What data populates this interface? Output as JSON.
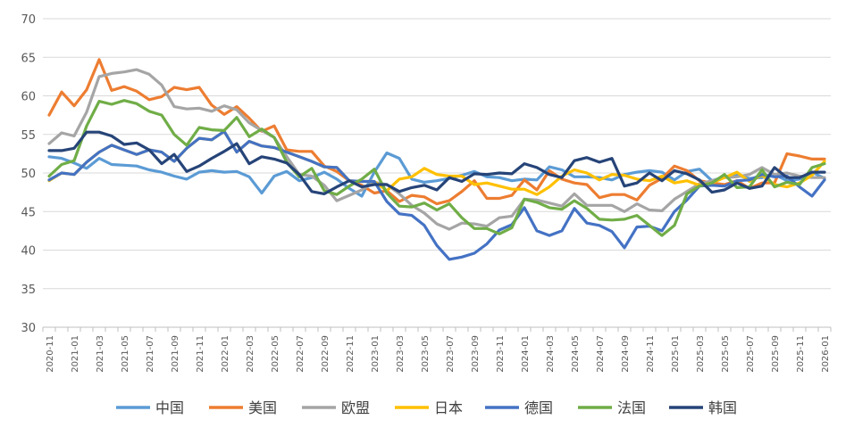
{
  "chart_data": {
    "type": "line",
    "title": "",
    "xlabel": "",
    "ylabel": "",
    "ylim": [
      30,
      70
    ],
    "yticks": [
      30,
      35,
      40,
      45,
      50,
      55,
      60,
      65,
      70
    ],
    "grid": "horizontal",
    "legend": "bottom",
    "x_tick_labels": [
      "2020-11",
      "2021-01",
      "2021-03",
      "2021-05",
      "2021-07",
      "2021-09",
      "2021-11",
      "2022-01",
      "2022-03",
      "2022-05",
      "2022-07",
      "2022-09",
      "2022-11",
      "2023-01",
      "2023-03",
      "2023-05",
      "2023-07",
      "2023-09",
      "2023-11",
      "2024-01",
      "2024-03",
      "2024-05",
      "2024-07",
      "2024-09",
      "2024-11",
      "2025-01",
      "2025-03",
      "2025-05",
      "2025-07",
      "2025-09",
      "2025-11",
      "2026-01"
    ],
    "x": [
      "2020-11",
      "2020-12",
      "2021-01",
      "2021-02",
      "2021-03",
      "2021-04",
      "2021-05",
      "2021-06",
      "2021-07",
      "2021-08",
      "2021-09",
      "2021-10",
      "2021-11",
      "2021-12",
      "2022-01",
      "2022-02",
      "2022-03",
      "2022-04",
      "2022-05",
      "2022-06",
      "2022-07",
      "2022-08",
      "2022-09",
      "2022-10",
      "2022-11",
      "2022-12",
      "2023-01",
      "2023-02",
      "2023-03",
      "2023-04",
      "2023-05",
      "2023-06",
      "2023-07",
      "2023-08",
      "2023-09",
      "2023-10",
      "2023-11",
      "2023-12",
      "2024-01",
      "2024-02",
      "2024-03",
      "2024-04",
      "2024-05",
      "2024-06",
      "2024-07",
      "2024-08",
      "2024-09",
      "2024-10",
      "2024-11",
      "2024-12",
      "2025-01",
      "2025-02",
      "2025-03",
      "2025-04",
      "2025-05",
      "2025-06",
      "2025-07",
      "2025-08",
      "2025-09",
      "2025-10",
      "2025-11",
      "2025-12",
      "2026-01"
    ],
    "series": [
      {
        "name": "中国",
        "color": "#5B9BD5",
        "values": [
          52.1,
          51.9,
          51.3,
          50.6,
          51.9,
          51.1,
          51.0,
          50.9,
          50.4,
          50.1,
          49.6,
          49.2,
          50.1,
          50.3,
          50.1,
          50.2,
          49.5,
          47.4,
          49.6,
          50.2,
          49.0,
          49.4,
          50.1,
          49.2,
          48.0,
          47.0,
          50.1,
          52.6,
          51.9,
          49.2,
          48.8,
          49.0,
          49.3,
          49.7,
          50.2,
          49.5,
          49.4,
          49.0,
          49.2,
          49.1,
          50.8,
          50.4,
          49.5,
          49.5,
          49.4,
          49.1,
          49.8,
          50.1,
          50.3,
          50.1,
          49.1,
          50.2,
          50.5,
          49.0,
          49.5,
          49.7,
          49.3,
          49.4,
          49.8,
          49.0,
          49.2,
          50.1,
          49.3
        ]
      },
      {
        "name": "美国",
        "color": "#ED7D31",
        "values": [
          57.5,
          60.5,
          58.7,
          60.8,
          64.7,
          60.7,
          61.2,
          60.6,
          59.5,
          59.9,
          61.1,
          60.8,
          61.1,
          58.8,
          57.6,
          58.6,
          57.1,
          55.4,
          56.1,
          53.0,
          52.8,
          52.8,
          50.9,
          50.2,
          49.0,
          48.4,
          47.4,
          47.7,
          46.3,
          47.1,
          46.9,
          46.0,
          46.4,
          47.6,
          49.0,
          46.7,
          46.7,
          47.1,
          49.1,
          47.8,
          50.3,
          49.2,
          48.7,
          48.5,
          46.8,
          47.2,
          47.2,
          46.5,
          48.4,
          49.3,
          50.9,
          50.3,
          49.0,
          48.7,
          48.5,
          49.0,
          48.0,
          48.7,
          48.7,
          52.5,
          52.2,
          51.8,
          51.8
        ]
      },
      {
        "name": "欧盟",
        "color": "#A5A5A5",
        "values": [
          53.8,
          55.2,
          54.8,
          57.9,
          62.5,
          62.9,
          63.1,
          63.4,
          62.8,
          61.4,
          58.6,
          58.3,
          58.4,
          58.0,
          58.7,
          58.2,
          56.5,
          55.5,
          54.6,
          52.1,
          49.8,
          49.6,
          48.4,
          46.4,
          47.1,
          47.8,
          48.8,
          48.5,
          47.3,
          45.8,
          44.8,
          43.4,
          42.7,
          43.5,
          43.4,
          43.1,
          44.2,
          44.4,
          46.6,
          46.5,
          46.1,
          45.7,
          47.3,
          45.8,
          45.8,
          45.8,
          45.0,
          46.0,
          45.2,
          45.1,
          46.6,
          47.6,
          48.6,
          49.0,
          49.4,
          49.5,
          49.8,
          50.7,
          49.8,
          50.0,
          49.6,
          49.4,
          49.4
        ]
      },
      {
        "name": "日本",
        "color": "#FFC000",
        "values": [
          49.0,
          50.0,
          49.8,
          51.4,
          52.7,
          53.6,
          53.0,
          52.4,
          53.0,
          52.7,
          51.5,
          53.2,
          54.5,
          54.3,
          55.4,
          52.7,
          54.1,
          53.5,
          53.3,
          52.7,
          52.1,
          51.5,
          50.8,
          50.7,
          49.0,
          48.9,
          48.9,
          47.7,
          49.2,
          49.5,
          50.6,
          49.8,
          49.6,
          49.6,
          48.5,
          48.7,
          48.3,
          47.9,
          47.9,
          47.2,
          48.2,
          49.6,
          50.4,
          50.0,
          49.1,
          49.8,
          49.7,
          49.2,
          49.0,
          49.6,
          48.7,
          49.0,
          48.4,
          48.7,
          49.4,
          50.1,
          48.9,
          49.7,
          48.5,
          48.2,
          48.7,
          49.7,
          51.5
        ]
      },
      {
        "name": "德国",
        "color": "#4472C4",
        "values": [
          49.1,
          50.0,
          49.8,
          51.4,
          52.7,
          53.6,
          53.0,
          52.4,
          53.0,
          52.7,
          51.5,
          53.2,
          54.5,
          54.3,
          55.4,
          52.7,
          54.1,
          53.5,
          53.3,
          52.7,
          52.1,
          51.5,
          50.8,
          50.7,
          49.0,
          48.9,
          48.9,
          46.3,
          44.7,
          44.5,
          43.2,
          40.6,
          38.8,
          39.1,
          39.6,
          40.8,
          42.6,
          43.3,
          45.5,
          42.5,
          41.9,
          42.5,
          45.4,
          43.5,
          43.2,
          42.4,
          40.3,
          43.0,
          43.1,
          42.5,
          45.0,
          46.5,
          48.3,
          48.4,
          48.3,
          49.0,
          49.1,
          49.8,
          49.5,
          49.6,
          48.2,
          47.0,
          49.1
        ]
      },
      {
        "name": "法国",
        "color": "#70AD47",
        "values": [
          49.6,
          51.1,
          51.6,
          56.1,
          59.3,
          58.9,
          59.4,
          59.0,
          58.0,
          57.5,
          55.0,
          53.6,
          55.9,
          55.6,
          55.5,
          57.2,
          54.7,
          55.7,
          54.6,
          51.4,
          49.5,
          50.6,
          47.7,
          47.2,
          48.3,
          49.2,
          50.5,
          47.4,
          45.7,
          45.6,
          46.1,
          45.2,
          46.0,
          44.2,
          42.8,
          42.8,
          42.1,
          42.9,
          46.6,
          46.2,
          45.5,
          45.3,
          46.4,
          45.4,
          44.0,
          43.9,
          44.0,
          44.5,
          43.2,
          41.9,
          43.2,
          47.3,
          48.3,
          48.7,
          49.8,
          48.1,
          48.2,
          50.4,
          48.2,
          48.8,
          48.5,
          50.7,
          51.2
        ]
      },
      {
        "name": "韩国",
        "color": "#264478",
        "values": [
          52.9,
          52.9,
          53.2,
          55.3,
          55.3,
          54.8,
          53.7,
          53.9,
          53.0,
          51.2,
          52.4,
          50.2,
          50.9,
          51.9,
          52.8,
          53.8,
          51.2,
          52.1,
          51.8,
          51.3,
          49.8,
          47.6,
          47.3,
          48.2,
          49.0,
          48.2,
          48.5,
          48.5,
          47.6,
          48.1,
          48.4,
          47.8,
          49.4,
          48.9,
          49.9,
          49.8,
          50.0,
          49.9,
          51.2,
          50.7,
          49.8,
          49.4,
          51.6,
          52.0,
          51.4,
          51.9,
          48.3,
          48.7,
          50.0,
          49.0,
          50.3,
          49.9,
          49.1,
          47.5,
          47.8,
          48.7,
          48.0,
          48.3,
          50.7,
          49.4,
          49.4,
          50.1,
          50.1
        ]
      }
    ]
  }
}
